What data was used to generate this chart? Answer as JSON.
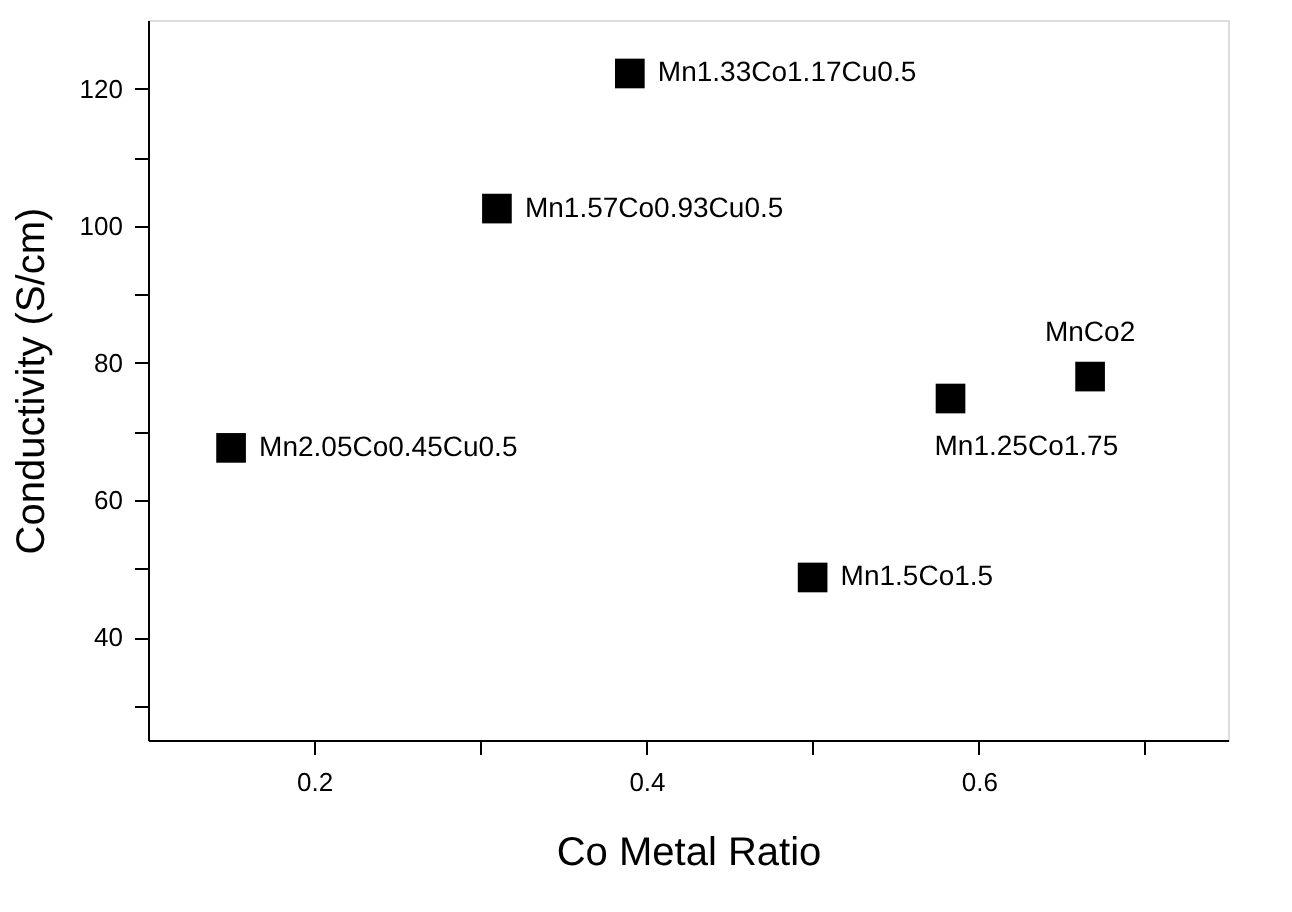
{
  "chart_data": {
    "type": "scatter",
    "xlabel": "Co Metal Ratio",
    "ylabel": "Conductivity (S/cm)",
    "x": [
      0.15,
      0.31,
      0.39,
      0.5,
      0.583,
      0.667
    ],
    "series": [
      {
        "color": "#000000",
        "values": [
          67.6,
          102.5,
          122.2,
          48.7,
          74.8,
          78.0
        ]
      }
    ],
    "marker": "square",
    "grid": false,
    "xlim": [
      0.1,
      0.75
    ],
    "ylim": [
      25,
      130
    ],
    "xticks": [
      0.2,
      {
        "value": 0.3,
        "label": null
      },
      0.4,
      {
        "value": 0.5,
        "label": null
      },
      0.6,
      {
        "value": 0.7,
        "label": null
      }
    ],
    "yticks": [
      {
        "value": 30,
        "label": null
      },
      40,
      {
        "value": 50,
        "label": null
      },
      60,
      {
        "value": 70,
        "label": null
      },
      80,
      {
        "value": 90,
        "label": null
      },
      100,
      {
        "value": 110,
        "label": null
      },
      120
    ],
    "annotations": [
      {
        "text": "Mn2.05Co0.45Cu0.5",
        "x": 0.15,
        "y": 67.6
      },
      {
        "text": "Mn1.57Co0.93Cu0.5",
        "x": 0.31,
        "y": 102.5
      },
      {
        "text": "Mn1.33Co1.17Cu0.5",
        "x": 0.39,
        "y": 122.2
      },
      {
        "text": "Mn1.5Co1.5",
        "x": 0.5,
        "y": 48.7
      },
      {
        "text": "Mn1.25Co1.75",
        "x": 0.583,
        "y": 74.8
      },
      {
        "text": "MnCo2",
        "x": 0.667,
        "y": 78.0
      }
    ]
  }
}
